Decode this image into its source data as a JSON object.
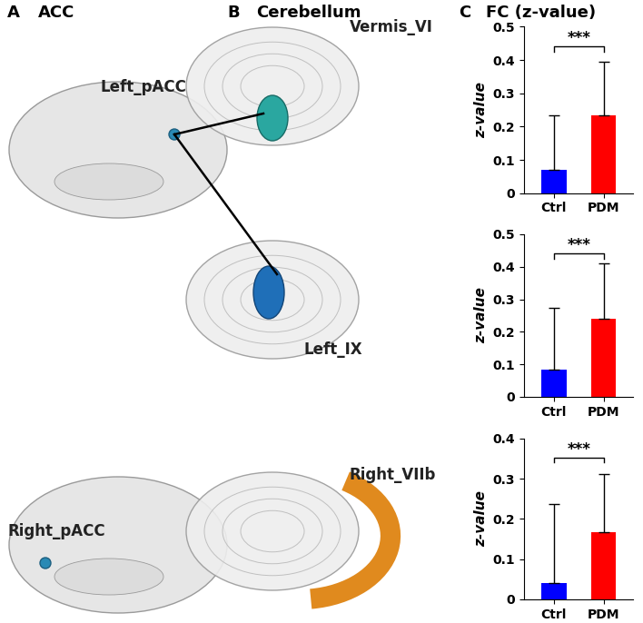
{
  "panels": [
    {
      "letter": "A",
      "title": "ACC"
    },
    {
      "letter": "B",
      "title": "Cerebellum"
    },
    {
      "letter": "C",
      "title": "FC (z-value)"
    }
  ],
  "regions": [
    "Left_pACC",
    "Right_pACC",
    "Vermis_VI",
    "Left_IX",
    "Right_VIIb"
  ],
  "chart_data": [
    {
      "type": "bar",
      "categories": [
        "Ctrl",
        "PDM"
      ],
      "values": [
        0.07,
        0.235
      ],
      "errors": [
        0.165,
        0.16
      ],
      "colors": [
        "#0000ff",
        "#ff0000"
      ],
      "ylabel": "z-value",
      "ylim": [
        0,
        0.5
      ],
      "yticks": [
        0,
        0.1,
        0.2,
        0.3,
        0.4,
        0.5
      ],
      "annotation": "***"
    },
    {
      "type": "bar",
      "categories": [
        "Ctrl",
        "PDM"
      ],
      "values": [
        0.085,
        0.24
      ],
      "errors": [
        0.19,
        0.17
      ],
      "colors": [
        "#0000ff",
        "#ff0000"
      ],
      "ylabel": "z-value",
      "ylim": [
        0,
        0.5
      ],
      "yticks": [
        0,
        0.1,
        0.2,
        0.3,
        0.4,
        0.5
      ],
      "annotation": "***"
    },
    {
      "type": "bar",
      "categories": [
        "Ctrl",
        "PDM"
      ],
      "values": [
        0.04,
        0.168
      ],
      "errors": [
        0.198,
        0.144
      ],
      "colors": [
        "#0000ff",
        "#ff0000"
      ],
      "ylabel": "z-value",
      "ylim": [
        0,
        0.4
      ],
      "yticks": [
        0,
        0.1,
        0.2,
        0.3,
        0.4
      ],
      "annotation": "***"
    }
  ]
}
